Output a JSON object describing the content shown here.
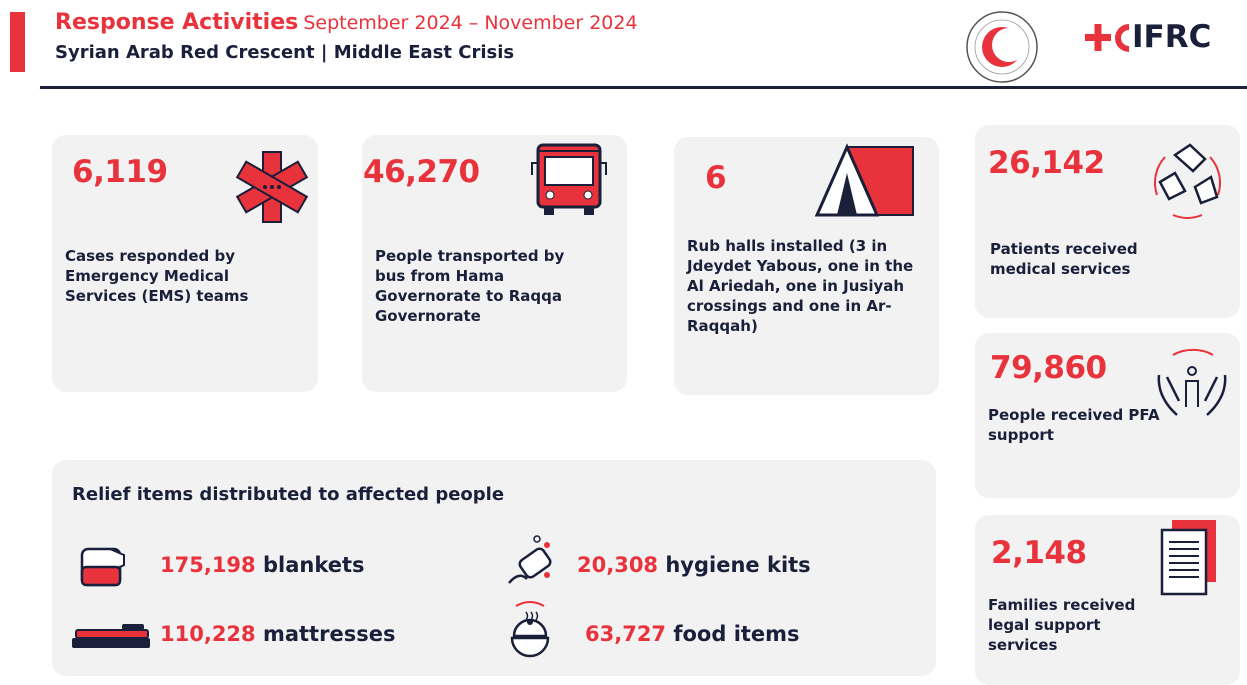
{
  "header": {
    "title": "Response Activities",
    "period": "September 2024 – November 2024",
    "subtitle": "Syrian Arab Red Crescent | Middle East Crisis",
    "logo": "IFRC"
  },
  "cards": [
    {
      "value": "6,119",
      "label": "Cases responded by Emergency Medical Services (EMS) teams"
    },
    {
      "value": "46,270",
      "label": "People transported by bus from Hama Governorate to Raqqa Governorate"
    },
    {
      "value": "6",
      "label": "Rub halls installed (3 in Jdeydet Yabous, one in the Al Ariedah, one in Jusiyah crossings and one in Ar-Raqqah)"
    },
    {
      "value": "26,142",
      "label": "Patients received medical services"
    },
    {
      "value": "79,860",
      "label": "People received PFA support"
    },
    {
      "value": "2,148",
      "label": "Families received legal support services"
    }
  ],
  "relief": {
    "title": "Relief items distributed to affected people",
    "items": [
      {
        "value": "175,198",
        "label": "blankets"
      },
      {
        "value": "20,308",
        "label": "hygiene kits"
      },
      {
        "value": "110,228",
        "label": "mattresses"
      },
      {
        "value": "63,727",
        "label": "food items"
      }
    ]
  }
}
